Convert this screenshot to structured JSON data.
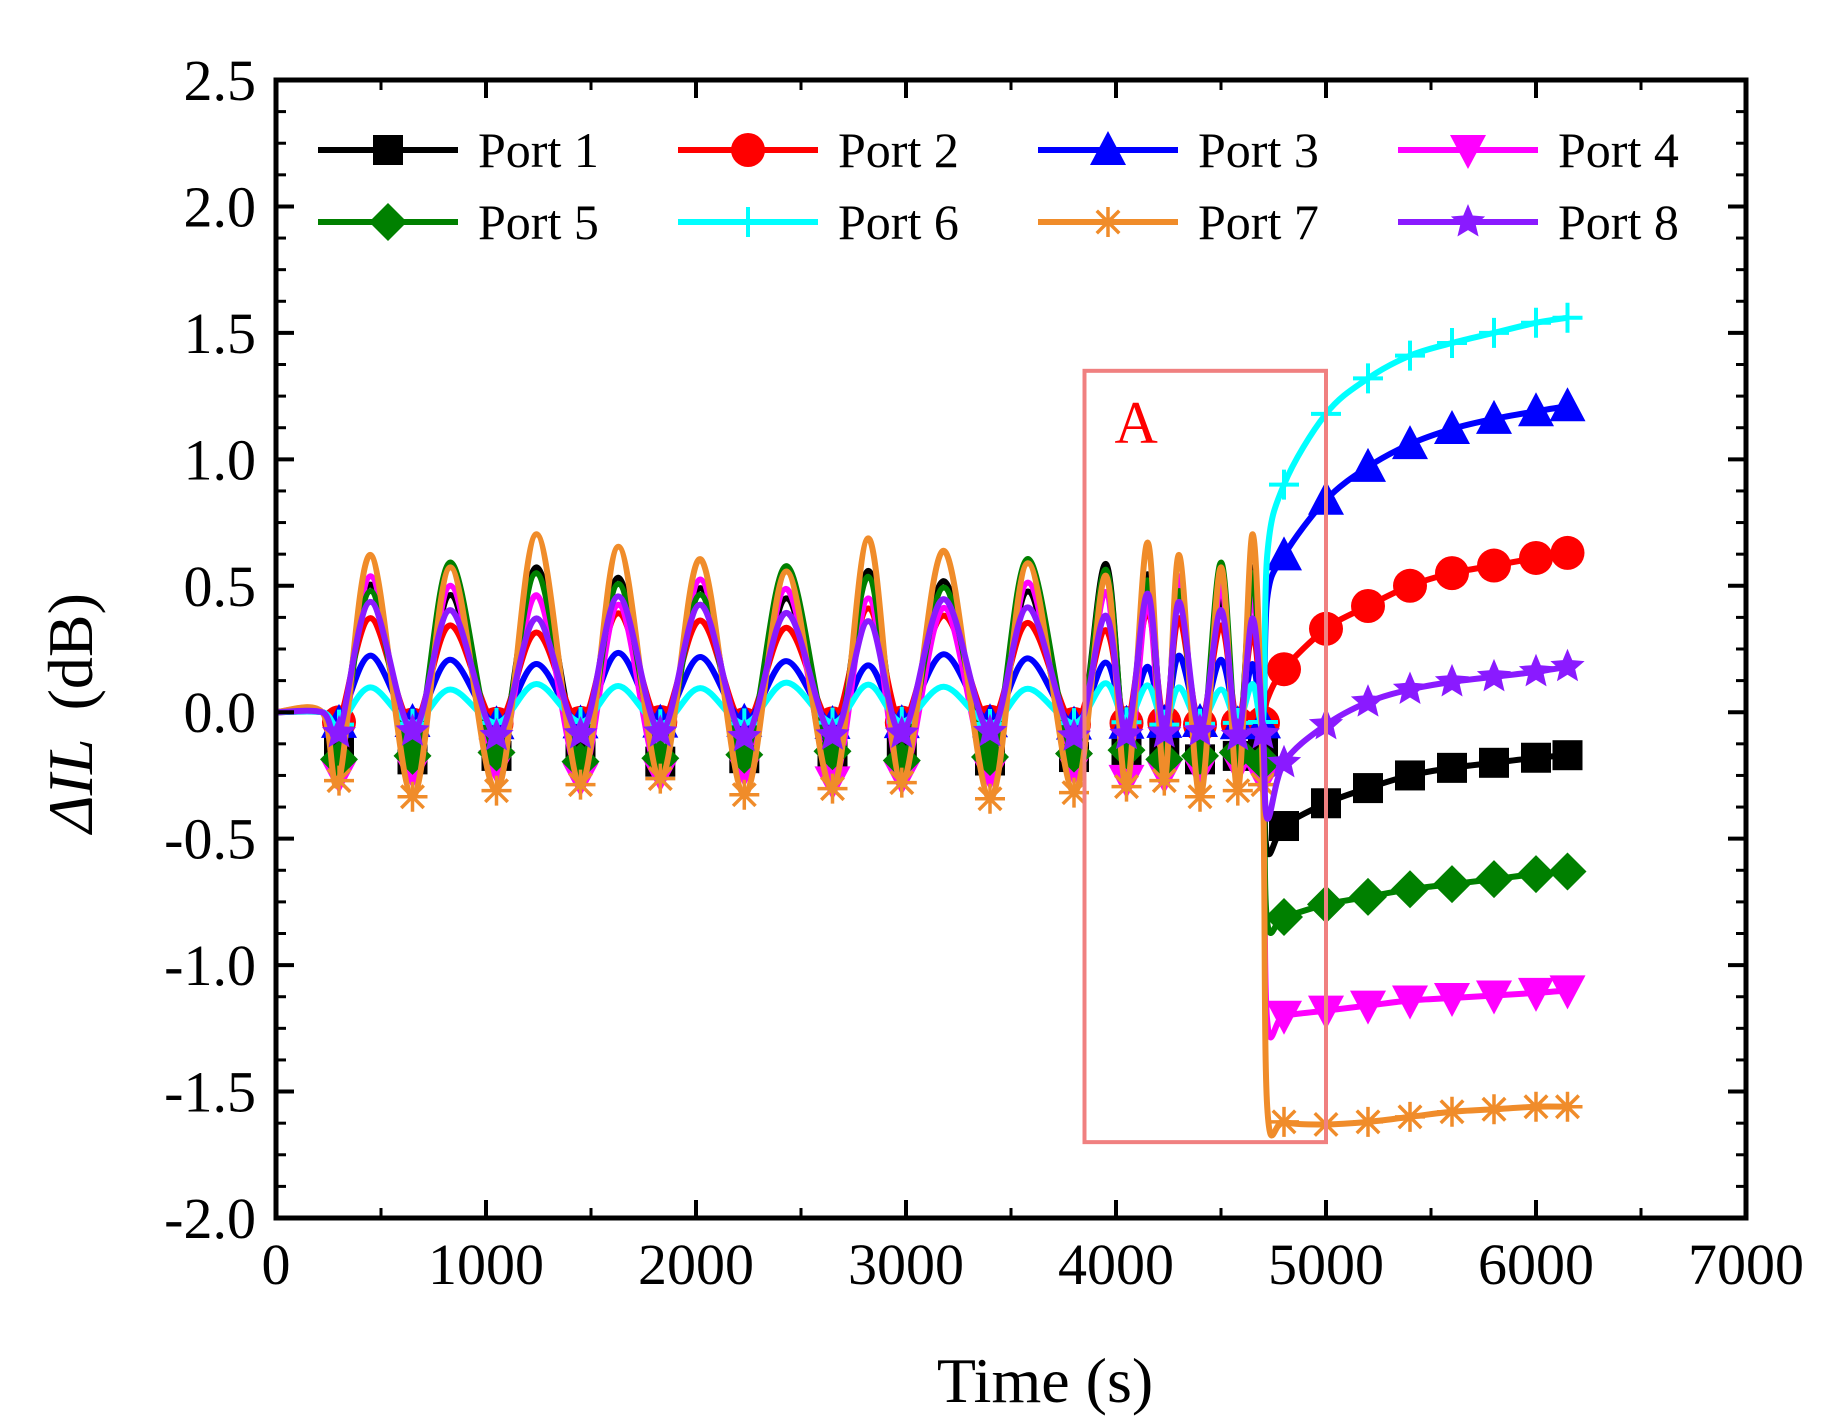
{
  "chart_data": {
    "type": "line",
    "title": "",
    "xlabel": "Time (s)",
    "ylabel_prefix": "ΔIL",
    "ylabel_unit": "(dB)",
    "xlim": [
      0,
      7000
    ],
    "ylim": [
      -2.0,
      2.5
    ],
    "x_ticks": [
      0,
      1000,
      2000,
      3000,
      4000,
      5000,
      6000,
      7000
    ],
    "x_tick_labels": [
      "0",
      "1000",
      "2000",
      "3000",
      "4000",
      "5000",
      "6000",
      "7000"
    ],
    "y_ticks": [
      -2.0,
      -1.5,
      -1.0,
      -0.5,
      0.0,
      0.5,
      1.0,
      1.5,
      2.0,
      2.5
    ],
    "y_tick_labels": [
      "-2.0",
      "-1.5",
      "-1.0",
      "-0.5",
      "0.0",
      "0.5",
      "1.0",
      "1.5",
      "2.0",
      "2.5"
    ],
    "grid": false,
    "legend_position": "top",
    "annotation": {
      "label": "A",
      "x_range": [
        3850,
        5000
      ],
      "y_range": [
        -1.7,
        1.35
      ],
      "color": "#f08080"
    },
    "oscillation": {
      "x_start": 250,
      "x_end": 4720,
      "peaks_x": [
        450,
        830,
        1240,
        1630,
        2020,
        2430,
        2820,
        3180,
        3580,
        3950,
        4150,
        4300,
        4500,
        4650
      ],
      "troughs_x": [
        300,
        650,
        1050,
        1450,
        1830,
        2230,
        2650,
        2980,
        3400,
        3800,
        4050,
        4230,
        4400,
        4580,
        4700
      ],
      "switch_x": 4720
    },
    "series": [
      {
        "name": "Port 1",
        "color": "#000000",
        "marker": "square",
        "osc_peak": 0.6,
        "osc_trough": -0.2,
        "x": [
          4720,
          4800,
          5000,
          5200,
          5400,
          5600,
          5800,
          6000,
          6150
        ],
        "y": [
          -0.55,
          -0.45,
          -0.36,
          -0.3,
          -0.25,
          -0.22,
          -0.2,
          -0.18,
          -0.17
        ]
      },
      {
        "name": "Port 2",
        "color": "#ff0000",
        "marker": "circle",
        "osc_peak": 0.42,
        "osc_trough": -0.05,
        "x": [
          4720,
          4800,
          5000,
          5200,
          5400,
          5600,
          5800,
          6000,
          6150
        ],
        "y": [
          0.05,
          0.17,
          0.33,
          0.42,
          0.5,
          0.55,
          0.58,
          0.61,
          0.63
        ]
      },
      {
        "name": "Port 3",
        "color": "#0000ff",
        "marker": "triangle-up",
        "osc_peak": 0.24,
        "osc_trough": -0.05,
        "x": [
          4720,
          4800,
          5000,
          5200,
          5400,
          5600,
          5800,
          6000,
          6150
        ],
        "y": [
          0.45,
          0.62,
          0.84,
          0.97,
          1.06,
          1.12,
          1.16,
          1.19,
          1.21
        ]
      },
      {
        "name": "Port 4",
        "color": "#ff00ff",
        "marker": "triangle-down",
        "osc_peak": 0.55,
        "osc_trough": -0.28,
        "x": [
          4720,
          4800,
          5000,
          5200,
          5400,
          5600,
          5800,
          6000,
          6150
        ],
        "y": [
          -1.22,
          -1.2,
          -1.18,
          -1.16,
          -1.14,
          -1.13,
          -1.12,
          -1.11,
          -1.1
        ]
      },
      {
        "name": "Port 5",
        "color": "#008000",
        "marker": "diamond",
        "osc_peak": 0.62,
        "osc_trough": -0.2,
        "x": [
          4720,
          4800,
          5000,
          5200,
          5400,
          5600,
          5800,
          6000,
          6150
        ],
        "y": [
          -0.83,
          -0.81,
          -0.76,
          -0.73,
          -0.7,
          -0.68,
          -0.66,
          -0.64,
          -0.63
        ]
      },
      {
        "name": "Port 6",
        "color": "#00ffff",
        "marker": "plus",
        "osc_peak": 0.12,
        "osc_trough": -0.05,
        "x": [
          4720,
          4800,
          5000,
          5200,
          5400,
          5600,
          5800,
          6000,
          6150
        ],
        "y": [
          0.62,
          0.9,
          1.18,
          1.32,
          1.41,
          1.46,
          1.5,
          1.54,
          1.56
        ]
      },
      {
        "name": "Port 7",
        "color": "#f08c2a",
        "marker": "asterisk",
        "osc_peak": 0.72,
        "osc_trough": -0.35,
        "x": [
          4720,
          4800,
          5000,
          5200,
          5400,
          5600,
          5800,
          6000,
          6150
        ],
        "y": [
          -1.56,
          -1.62,
          -1.63,
          -1.62,
          -1.6,
          -1.58,
          -1.57,
          -1.56,
          -1.56
        ]
      },
      {
        "name": "Port 8",
        "color": "#8a1aff",
        "marker": "star",
        "osc_peak": 0.48,
        "osc_trough": -0.1,
        "x": [
          4720,
          4800,
          5000,
          5200,
          5400,
          5600,
          5800,
          6000,
          6150
        ],
        "y": [
          -0.42,
          -0.2,
          -0.05,
          0.04,
          0.09,
          0.12,
          0.14,
          0.16,
          0.18
        ]
      }
    ]
  }
}
